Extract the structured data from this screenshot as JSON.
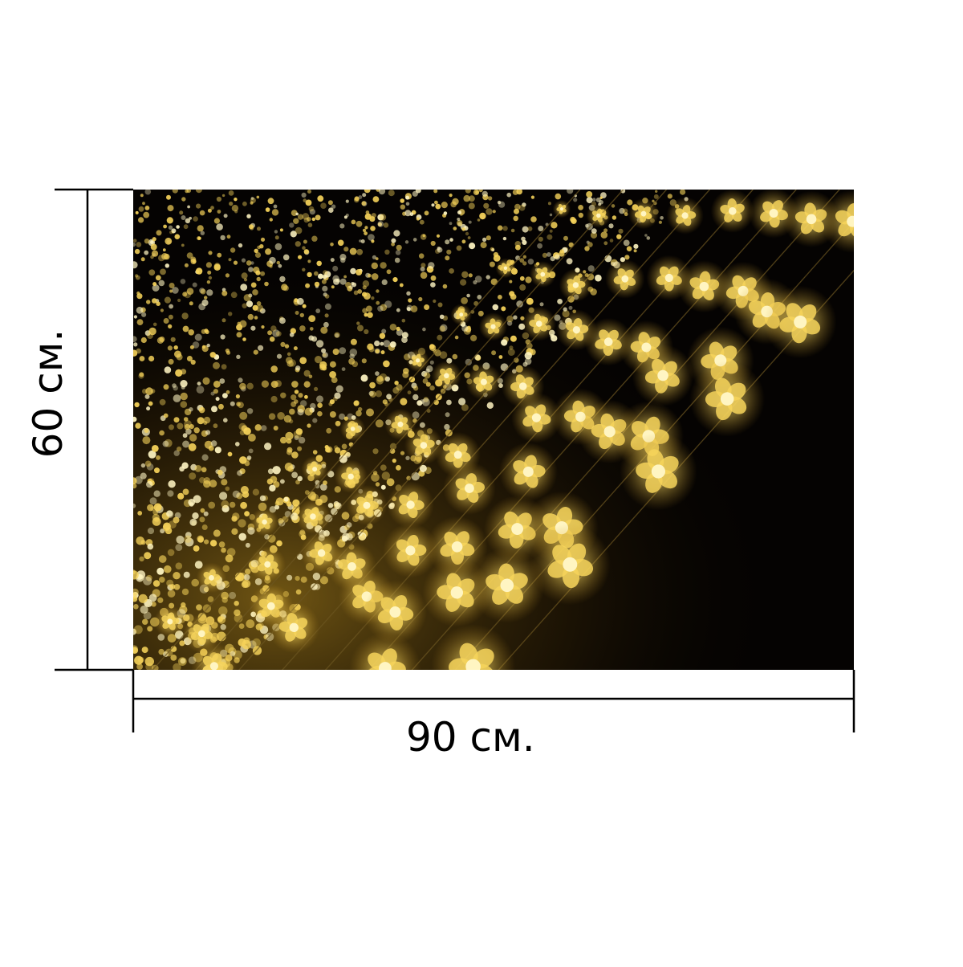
{
  "photo": {
    "subject": "golden-fairy-light-curtain",
    "colors": {
      "background": "#050302",
      "light": "#f6d35a",
      "light_core": "#fff5c2",
      "wire": "#6b5520"
    }
  },
  "dimensions": {
    "height_label": "60 см.",
    "width_label": "90 см.",
    "line_color": "#000000"
  }
}
